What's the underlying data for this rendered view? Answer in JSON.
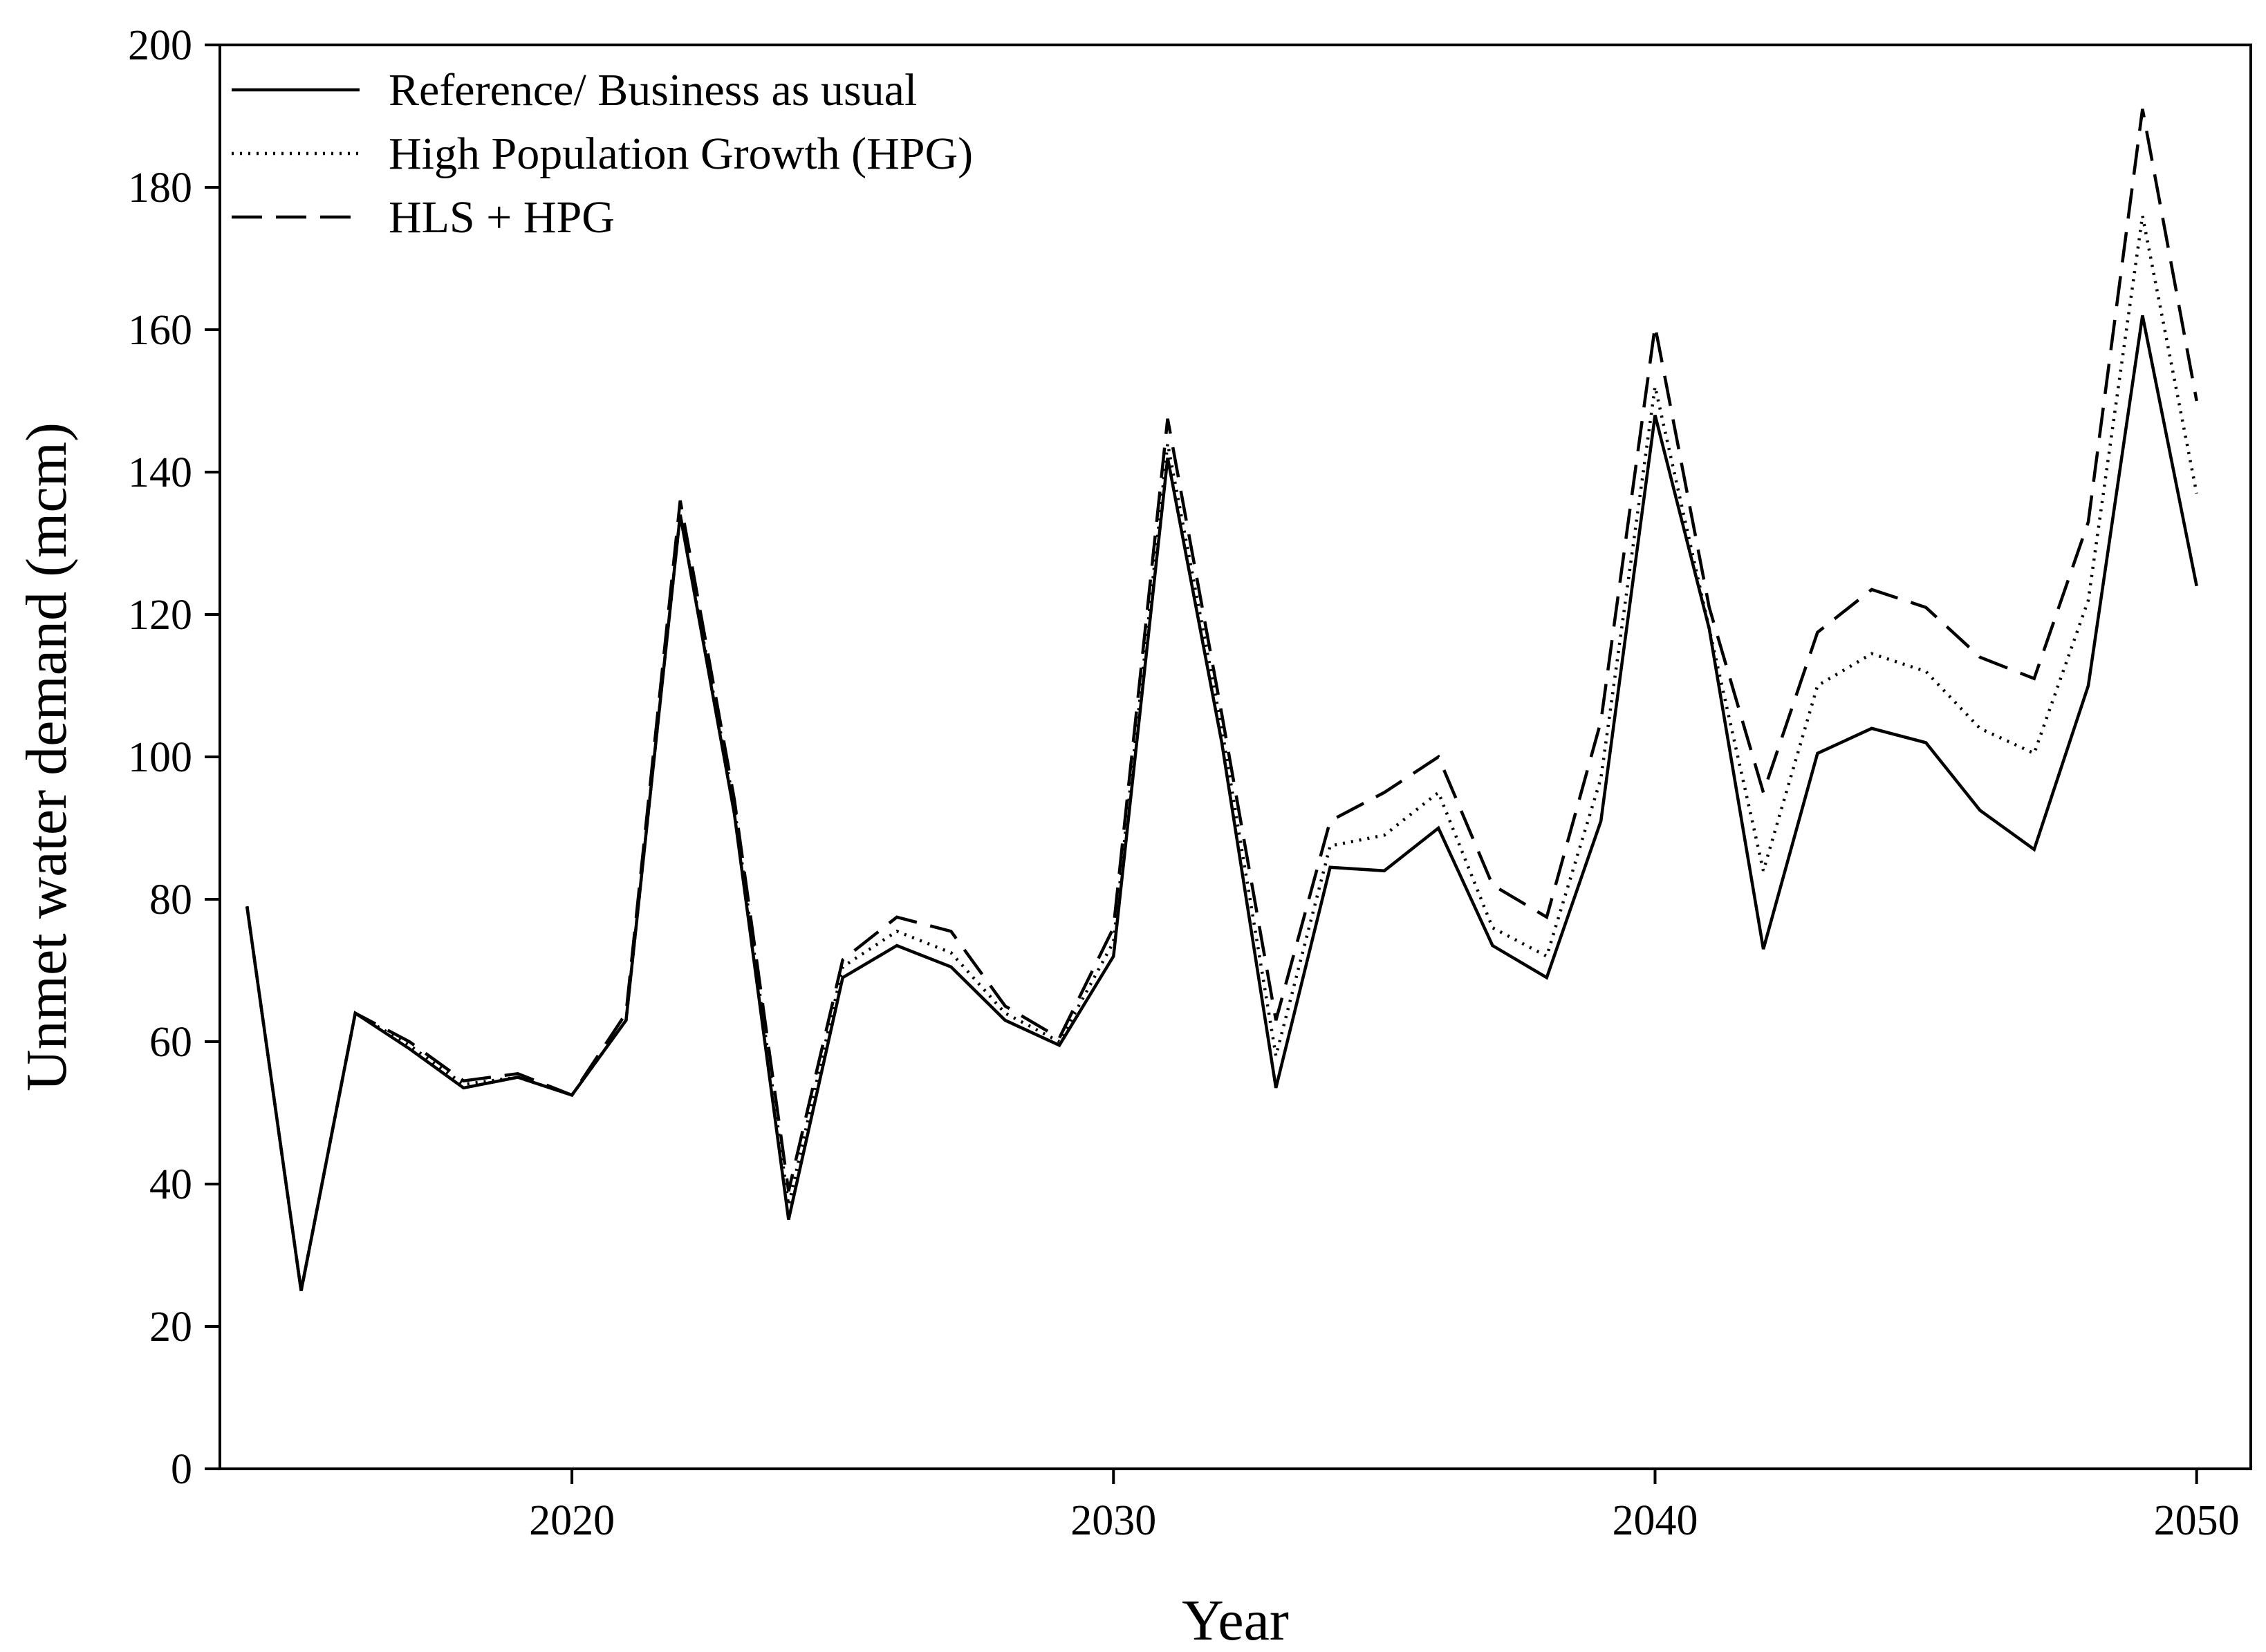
{
  "chart_data": {
    "type": "line",
    "xlabel": "Year",
    "ylabel": "Unmet water demand (mcm)",
    "xlim": [
      2013.5,
      2051
    ],
    "ylim": [
      0,
      200
    ],
    "x_ticks": [
      2020,
      2030,
      2040,
      2050
    ],
    "y_ticks": [
      0,
      20,
      40,
      60,
      80,
      100,
      120,
      140,
      160,
      180,
      200
    ],
    "grid": false,
    "legend_position": "top-left",
    "x": [
      2014,
      2015,
      2016,
      2017,
      2018,
      2019,
      2020,
      2021,
      2022,
      2023,
      2024,
      2025,
      2026,
      2027,
      2028,
      2029,
      2030,
      2031,
      2032,
      2033,
      2034,
      2035,
      2036,
      2037,
      2038,
      2039,
      2040,
      2041,
      2042,
      2043,
      2044,
      2045,
      2046,
      2047,
      2048,
      2049,
      2050
    ],
    "series": [
      {
        "name": "Reference/ Business as usual",
        "style": "solid",
        "values": [
          79,
          25,
          64,
          59,
          53.5,
          55,
          52.5,
          63,
          134,
          92,
          35,
          69,
          73.5,
          70.5,
          63,
          59.5,
          72,
          142,
          102,
          53.5,
          84.5,
          84,
          90,
          73.5,
          69,
          91,
          148,
          118,
          73,
          100.5,
          104,
          102,
          92.5,
          87,
          110,
          162,
          124
        ]
      },
      {
        "name": "High Population Growth (HPG)",
        "style": "dotted",
        "values": [
          79,
          25,
          64,
          59.5,
          54,
          55,
          52.5,
          63,
          134,
          93,
          37,
          70.5,
          75.5,
          72.5,
          64,
          60,
          74,
          144,
          104,
          58,
          87.5,
          89,
          95,
          76,
          72,
          97,
          152,
          118,
          84,
          110,
          114.5,
          112,
          104,
          100.5,
          122,
          176,
          137
        ]
      },
      {
        "name": "HLS + HPG",
        "style": "dashed",
        "values": [
          79,
          25,
          64,
          60,
          54.5,
          55.5,
          52.5,
          64,
          136,
          94,
          39,
          71.5,
          77.5,
          75.5,
          65,
          60.5,
          76,
          147.5,
          106,
          63,
          91,
          95,
          100,
          82,
          77.5,
          105,
          160.5,
          121,
          95,
          117.5,
          123.5,
          121,
          114,
          111,
          133,
          191,
          150
        ]
      }
    ]
  }
}
